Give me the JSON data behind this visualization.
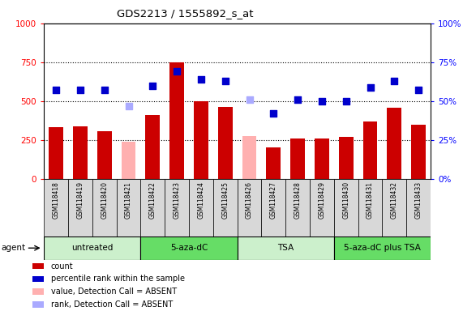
{
  "title": "GDS2213 / 1555892_s_at",
  "samples": [
    "GSM118418",
    "GSM118419",
    "GSM118420",
    "GSM118421",
    "GSM118422",
    "GSM118423",
    "GSM118424",
    "GSM118425",
    "GSM118426",
    "GSM118427",
    "GSM118428",
    "GSM118429",
    "GSM118430",
    "GSM118431",
    "GSM118432",
    "GSM118433"
  ],
  "count_values": [
    330,
    335,
    305,
    null,
    410,
    750,
    500,
    465,
    null,
    200,
    260,
    260,
    270,
    370,
    455,
    350
  ],
  "count_absent": [
    null,
    null,
    null,
    240,
    null,
    null,
    null,
    null,
    275,
    null,
    null,
    null,
    null,
    null,
    null,
    null
  ],
  "percentile_values": [
    57,
    57,
    57,
    null,
    60,
    69,
    64,
    63,
    null,
    42,
    51,
    50,
    50,
    59,
    63,
    57
  ],
  "percentile_absent": [
    null,
    null,
    null,
    47,
    null,
    null,
    null,
    null,
    51,
    null,
    null,
    null,
    null,
    null,
    null,
    null
  ],
  "groups": [
    {
      "label": "untreated",
      "start": 0,
      "end": 4,
      "color": "#ccf0cc"
    },
    {
      "label": "5-aza-dC",
      "start": 4,
      "end": 8,
      "color": "#66dd66"
    },
    {
      "label": "TSA",
      "start": 8,
      "end": 12,
      "color": "#ccf0cc"
    },
    {
      "label": "5-aza-dC plus TSA",
      "start": 12,
      "end": 16,
      "color": "#66dd66"
    }
  ],
  "bar_color_present": "#cc0000",
  "bar_color_absent": "#ffb0b0",
  "dot_color_present": "#0000cc",
  "dot_color_absent": "#aaaaff",
  "ylim_left": [
    0,
    1000
  ],
  "ylim_right": [
    0,
    100
  ],
  "yticks_left": [
    0,
    250,
    500,
    750,
    1000
  ],
  "yticks_right": [
    0,
    25,
    50,
    75,
    100
  ],
  "bar_width": 0.6,
  "dot_size": 30,
  "agent_label": "agent"
}
